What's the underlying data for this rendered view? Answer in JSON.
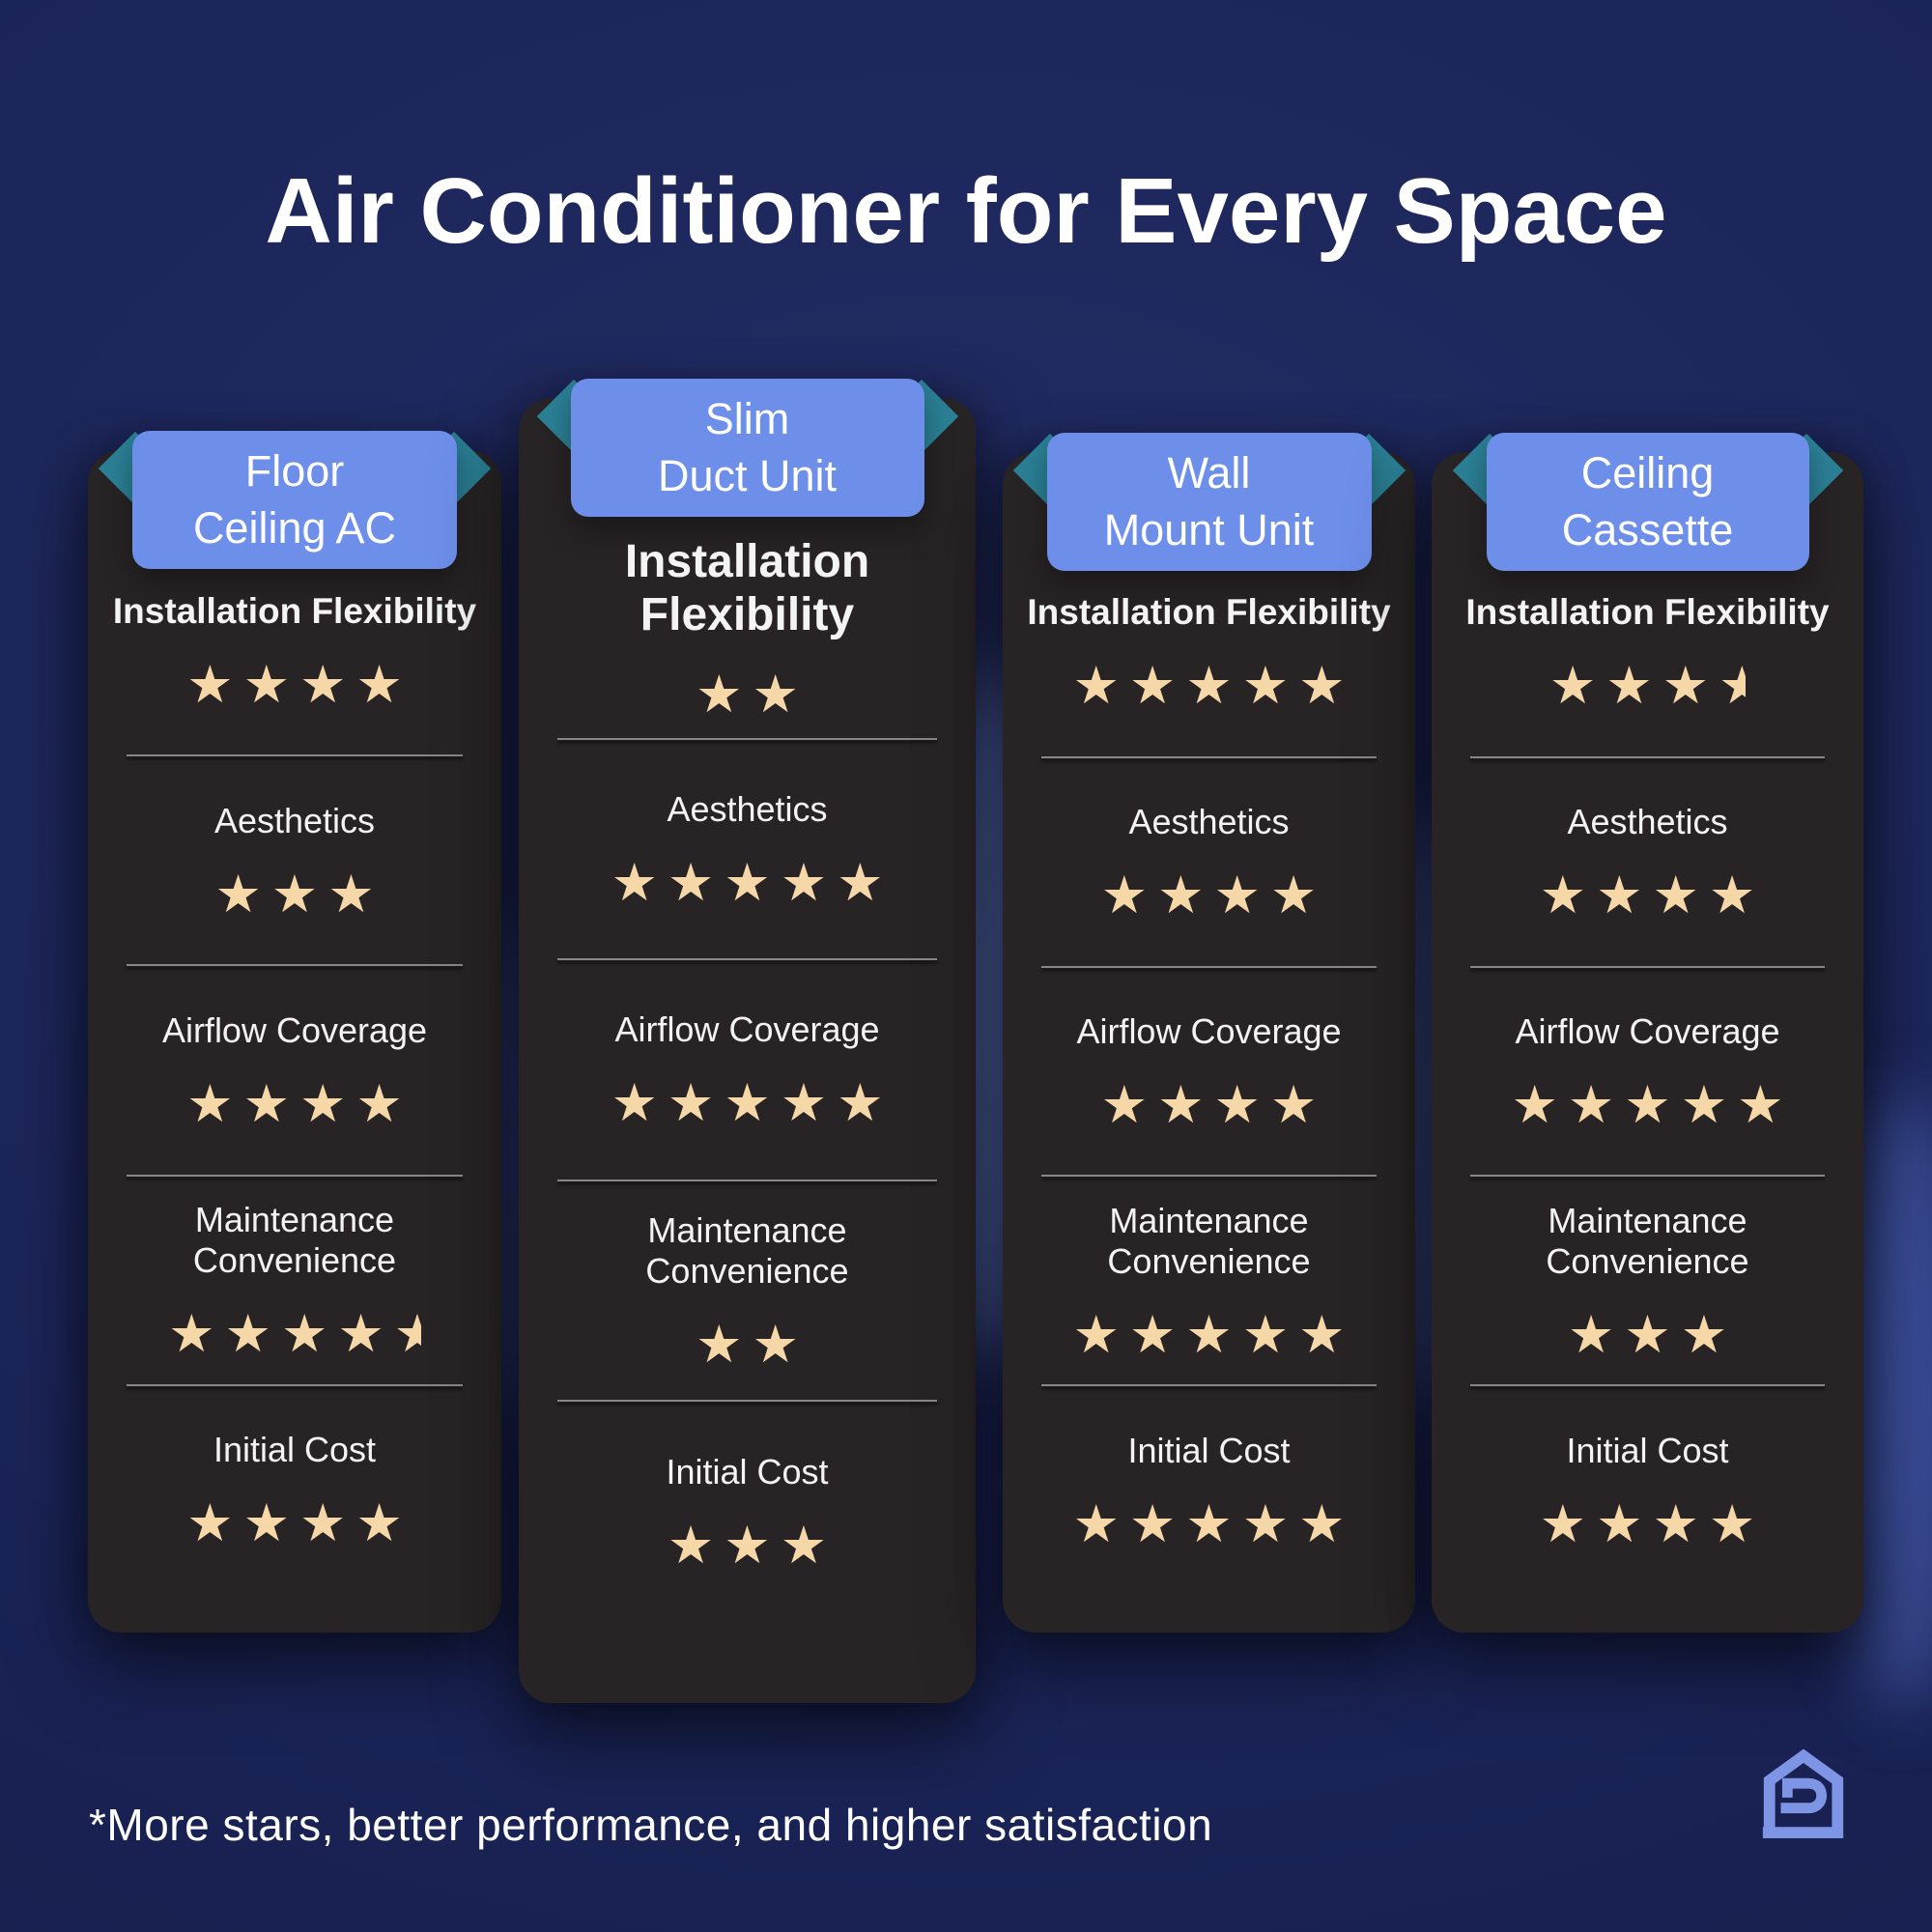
{
  "title": "Air Conditioner for Every Space",
  "footnote": "*More stars, better performance, and higher satisfaction",
  "categories": [
    "Installation Flexibility",
    "Aesthetics",
    "Airflow Coverage",
    "Maintenance Convenience",
    "Initial Cost"
  ],
  "columns": [
    {
      "name_lines": [
        "Floor",
        "Ceiling AC"
      ],
      "ratings": [
        4,
        3,
        4,
        4.5,
        4
      ]
    },
    {
      "name_lines": [
        "Slim",
        "Duct Unit"
      ],
      "ratings": [
        2,
        5,
        5,
        2,
        3
      ]
    },
    {
      "name_lines": [
        "Wall",
        "Mount Unit"
      ],
      "ratings": [
        5,
        4,
        4,
        5,
        5
      ]
    },
    {
      "name_lines": [
        "Ceiling",
        "Cassette"
      ],
      "ratings": [
        3.5,
        4,
        5,
        3,
        4
      ]
    }
  ],
  "icons": {
    "star": "★",
    "fold": "ribbon-fold",
    "logo": "house-d-logo"
  },
  "colors": {
    "background": "#1B2457",
    "card": "#282425",
    "header": "#6D8EE9",
    "fold_teal": "#2B8096",
    "star": "#F6D8A8",
    "divider": "#D7D7D7",
    "logo_blue": "#7E95E5",
    "text": "#FFFFFF"
  },
  "chart_data": {
    "type": "table",
    "title": "Air Conditioner for Every Space",
    "categories": [
      "Installation Flexibility",
      "Aesthetics",
      "Airflow Coverage",
      "Maintenance Convenience",
      "Initial Cost"
    ],
    "series": [
      {
        "name": "Floor Ceiling AC",
        "values": [
          4,
          3,
          4,
          4.5,
          4
        ]
      },
      {
        "name": "Slim Duct Unit",
        "values": [
          2,
          5,
          5,
          2,
          3
        ]
      },
      {
        "name": "Wall Mount Unit",
        "values": [
          5,
          4,
          4,
          5,
          5
        ]
      },
      {
        "name": "Ceiling Cassette",
        "values": [
          3.5,
          4,
          5,
          3,
          4
        ]
      }
    ],
    "value_scale": "stars out of 5 (half stars allowed)",
    "annotation": "*More stars, better performance, and higher satisfaction"
  }
}
